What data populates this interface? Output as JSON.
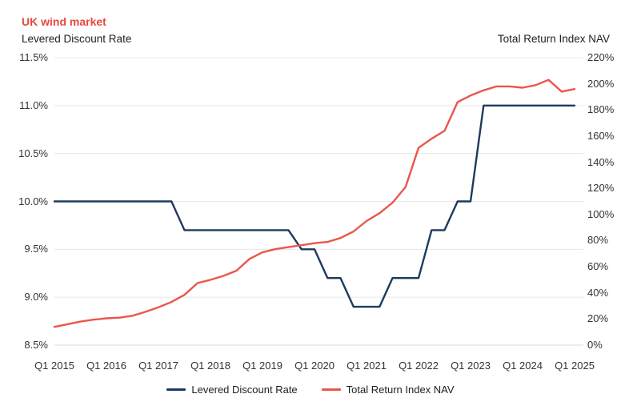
{
  "header": {
    "title": "UK wind market"
  },
  "colors": {
    "title": "#e8463f",
    "text": "#212121",
    "tick_text": "#333333",
    "grid": "#e7e7e7",
    "axis_line": "#d8d8d8",
    "navy_series": "#1d3a5f",
    "red_series": "#e9574a"
  },
  "legend": {
    "items": [
      {
        "label": "Levered Discount Rate"
      },
      {
        "label": "Total Return Index NAV"
      }
    ]
  },
  "chart_data": {
    "type": "line",
    "title": "UK wind market",
    "grid": "horizontal",
    "legend_position": "bottom",
    "categories": [
      "Q1 2015",
      "Q2 2015",
      "Q3 2015",
      "Q4 2015",
      "Q1 2016",
      "Q2 2016",
      "Q3 2016",
      "Q4 2016",
      "Q1 2017",
      "Q2 2017",
      "Q3 2017",
      "Q4 2017",
      "Q1 2018",
      "Q2 2018",
      "Q3 2018",
      "Q4 2018",
      "Q1 2019",
      "Q2 2019",
      "Q3 2019",
      "Q4 2019",
      "Q1 2020",
      "Q2 2020",
      "Q3 2020",
      "Q4 2020",
      "Q1 2021",
      "Q2 2021",
      "Q3 2021",
      "Q4 2021",
      "Q1 2022",
      "Q2 2022",
      "Q3 2022",
      "Q4 2022",
      "Q1 2023",
      "Q2 2023",
      "Q3 2023",
      "Q4 2023",
      "Q1 2024",
      "Q2 2024",
      "Q3 2024",
      "Q4 2024",
      "Q1 2025"
    ],
    "series": [
      {
        "name": "Levered Discount Rate",
        "axis": "left",
        "color": "#1d3a5f",
        "unit": "%",
        "values": [
          10.0,
          10.0,
          10.0,
          10.0,
          10.0,
          10.0,
          10.0,
          10.0,
          10.0,
          10.0,
          9.7,
          9.7,
          9.7,
          9.7,
          9.7,
          9.7,
          9.7,
          9.7,
          9.7,
          9.5,
          9.5,
          9.2,
          9.2,
          8.9,
          8.9,
          8.9,
          9.2,
          9.2,
          9.2,
          9.7,
          9.7,
          10.0,
          10.0,
          11.0,
          11.0,
          11.0,
          11.0,
          11.0,
          11.0,
          11.0,
          11.0
        ]
      },
      {
        "name": "Total Return Index NAV",
        "axis": "right",
        "color": "#e9574a",
        "unit": "%",
        "values": [
          14,
          16,
          18,
          19.5,
          20.5,
          21,
          22.5,
          25.5,
          29,
          33,
          38.5,
          47.5,
          50,
          53,
          57,
          66,
          71,
          73.5,
          75,
          76.5,
          78,
          79,
          82,
          87,
          95,
          101,
          109,
          121,
          151,
          158,
          164,
          186,
          191,
          195,
          198,
          198,
          197,
          199,
          203,
          194,
          196
        ]
      }
    ],
    "axes": {
      "left": {
        "title": "Levered Discount Rate",
        "min": 8.5,
        "max": 11.5,
        "ticks": [
          "11.5%",
          "11.0%",
          "10.5%",
          "10.0%",
          "9.5%",
          "9.0%",
          "8.5%"
        ]
      },
      "right": {
        "title": "Total Return Index NAV",
        "min": 0,
        "max": 220,
        "ticks": [
          "220%",
          "200%",
          "180%",
          "160%",
          "140%",
          "120%",
          "100%",
          "80%",
          "60%",
          "40%",
          "20%",
          "0%"
        ]
      }
    },
    "x_axis": {
      "tick_labels": [
        "Q1 2015",
        "Q1 2016",
        "Q1 2017",
        "Q1 2018",
        "Q1 2019",
        "Q1 2020",
        "Q1 2021",
        "Q1 2022",
        "Q1 2023",
        "Q1 2024",
        "Q1 2025"
      ]
    }
  }
}
